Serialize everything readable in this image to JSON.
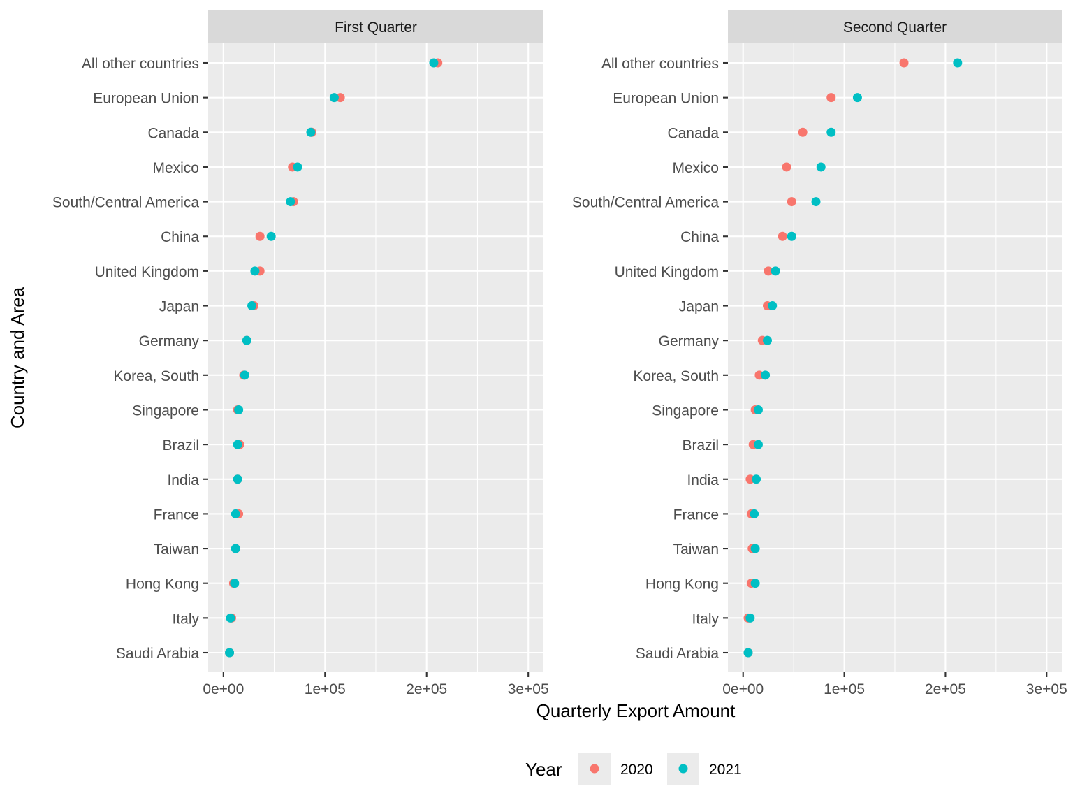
{
  "chart_data": {
    "type": "scatter",
    "facet_titles": [
      "First Quarter",
      "Second Quarter"
    ],
    "xlabel": "Quarterly Export Amount",
    "ylabel": "Country and Area",
    "xlim": [
      -15000,
      315000
    ],
    "x_ticks": [
      0,
      100000,
      200000,
      300000
    ],
    "x_tick_labels": [
      "0e+00",
      "1e+05",
      "2e+05",
      "3e+05"
    ],
    "categories": [
      "All other countries",
      "European Union",
      "Canada",
      "Mexico",
      "South/Central America",
      "China",
      "United Kingdom",
      "Japan",
      "Germany",
      "Korea, South",
      "Singapore",
      "Brazil",
      "India",
      "France",
      "Taiwan",
      "Hong Kong",
      "Italy",
      "Saudi Arabia"
    ],
    "legend": {
      "title": "Year",
      "position": "bottom",
      "entries": [
        {
          "name": "2020",
          "color": "#F8766D"
        },
        {
          "name": "2021",
          "color": "#00BFC4"
        }
      ]
    },
    "grid": true,
    "panels": [
      {
        "title": "First Quarter",
        "series": [
          {
            "name": "2020",
            "color": "#F8766D",
            "values": [
              211000,
              115000,
              87000,
              68000,
              69000,
              36000,
              36000,
              30000,
              23000,
              20000,
              14000,
              16000,
              14000,
              15000,
              12000,
              10000,
              8000,
              6000
            ]
          },
          {
            "name": "2021",
            "color": "#00BFC4",
            "values": [
              207000,
              109000,
              86000,
              73000,
              66000,
              47000,
              31000,
              28000,
              23000,
              21000,
              15000,
              14000,
              14000,
              12000,
              12000,
              11000,
              7000,
              6000
            ]
          }
        ]
      },
      {
        "title": "Second Quarter",
        "series": [
          {
            "name": "2020",
            "color": "#F8766D",
            "values": [
              159000,
              87000,
              59000,
              43000,
              48000,
              39000,
              25000,
              24000,
              19000,
              16000,
              12000,
              10000,
              7000,
              8000,
              9000,
              8000,
              5000,
              5000
            ]
          },
          {
            "name": "2021",
            "color": "#00BFC4",
            "values": [
              212000,
              113000,
              87000,
              77000,
              72000,
              48000,
              32000,
              29000,
              24000,
              22000,
              15000,
              15000,
              13000,
              11000,
              12000,
              12000,
              7000,
              5000
            ]
          }
        ]
      }
    ]
  }
}
